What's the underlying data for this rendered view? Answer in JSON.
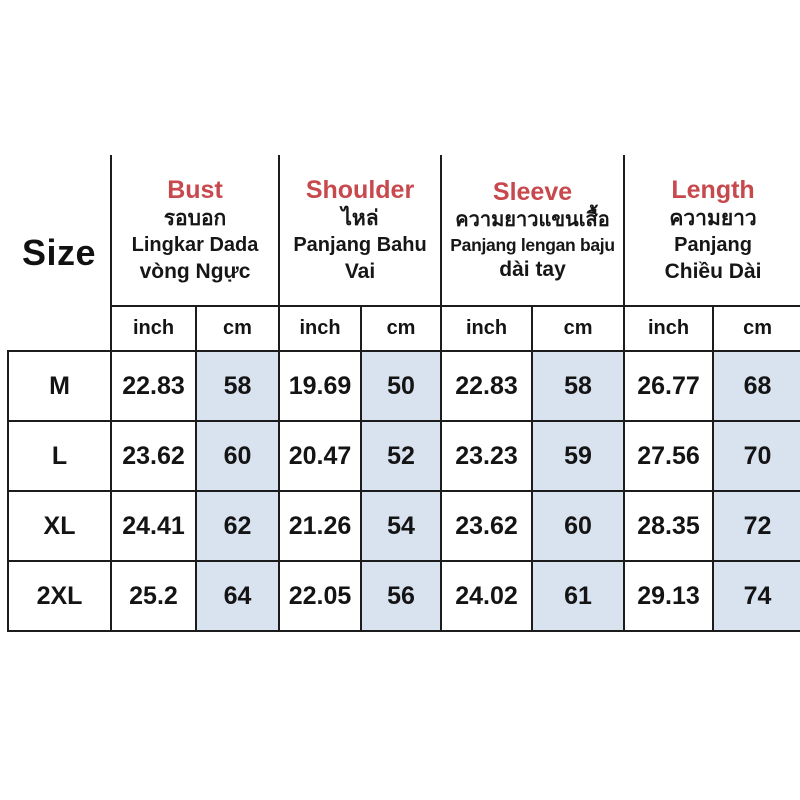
{
  "colors": {
    "accent_red": "#c7484d",
    "cm_column_blue": "#d9e3ef",
    "border_black": "#1c1c1c",
    "text_black": "#141414"
  },
  "table": {
    "size_label": "Size",
    "unit_labels": [
      "inch",
      "cm"
    ],
    "groups": [
      {
        "en": "Bust",
        "th": "รอบอก",
        "id": "Lingkar Dada",
        "vi": "vòng Ngực"
      },
      {
        "en": "Shoulder",
        "th": "ไหล่",
        "id": "Panjang Bahu",
        "vi": "Vai"
      },
      {
        "en": "Sleeve",
        "th": "ความยาวแขนเสื้อ",
        "id": "Panjang lengan baju",
        "vi": "dài tay"
      },
      {
        "en": "Length",
        "th": "ความยาว",
        "id": "Panjang",
        "vi": "Chiều Dài"
      }
    ],
    "rows": [
      {
        "size": "M",
        "values": [
          "22.83",
          "58",
          "19.69",
          "50",
          "22.83",
          "58",
          "26.77",
          "68"
        ]
      },
      {
        "size": "L",
        "values": [
          "23.62",
          "60",
          "20.47",
          "52",
          "23.23",
          "59",
          "27.56",
          "70"
        ]
      },
      {
        "size": "XL",
        "values": [
          "24.41",
          "62",
          "21.26",
          "54",
          "23.62",
          "60",
          "28.35",
          "72"
        ]
      },
      {
        "size": "2XL",
        "values": [
          "25.2",
          "64",
          "22.05",
          "56",
          "24.02",
          "61",
          "29.13",
          "74"
        ]
      }
    ]
  }
}
